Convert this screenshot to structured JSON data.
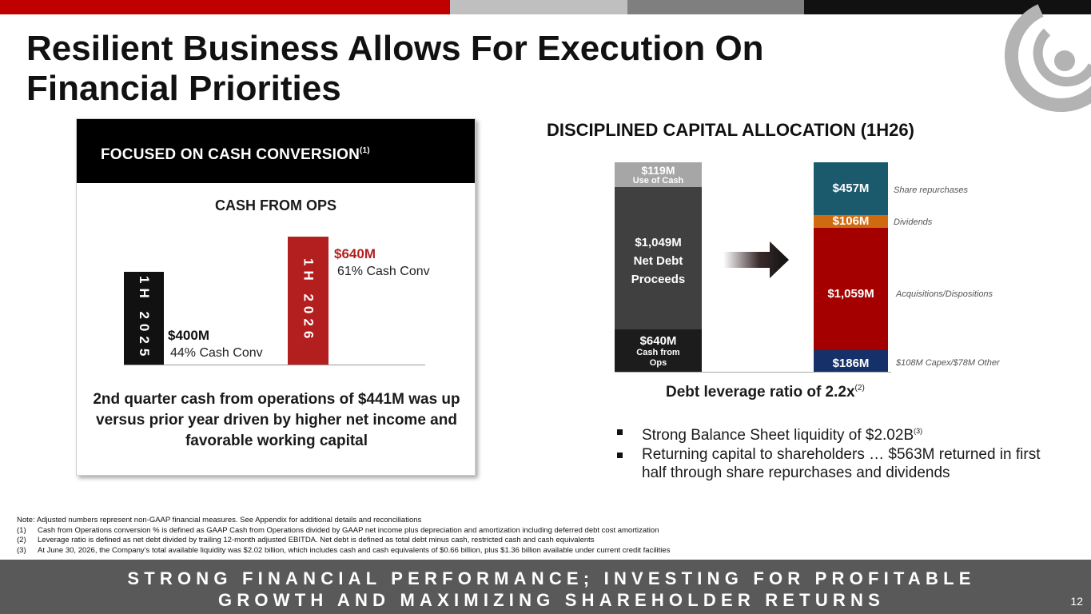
{
  "slide": {
    "title_line1": "Resilient Business Allows For Execution On",
    "title_line2": "Financial Priorities",
    "page_number": "12",
    "brand_colors": {
      "red": "#c00000",
      "light_gray": "#bfbfbf",
      "dark_gray": "#7f7f7f",
      "black": "#111111"
    }
  },
  "left_panel": {
    "header": "FOCUSED ON CASH CONVERSION",
    "header_ref": "(1)",
    "chart_title": "CASH FROM OPS",
    "bars": [
      {
        "label": "1H 2025",
        "value_label": "$400M",
        "value": 400,
        "sub": "44% Cash Conv",
        "color": "#111111",
        "value_color": "#111111"
      },
      {
        "label": "1H 2026",
        "value_label": "$640M",
        "value": 640,
        "sub": "61% Cash Conv",
        "color": "#b31f1f",
        "value_color": "#b31f1f"
      }
    ],
    "summary": "2nd quarter cash from operations of $441M was up versus prior year driven by higher net income and favorable working capital"
  },
  "right_panel": {
    "header": "DISCIPLINED CAPITAL ALLOCATION (1H26)",
    "sources": [
      {
        "value": "$640M",
        "label_lines": [
          "Cash from",
          "Ops"
        ],
        "amount": 640,
        "color": "#1c1c1c"
      },
      {
        "value": "$1,049M",
        "label_lines": [
          "Net Debt",
          "Proceeds"
        ],
        "amount": 1049,
        "color": "#404040"
      },
      {
        "value": "$119M",
        "label_lines": [
          "Use of Cash"
        ],
        "amount": 119,
        "color": "#a6a6a6"
      }
    ],
    "uses": [
      {
        "value": "$186M",
        "amount": 186,
        "color": "#16306a",
        "note": "$108M Capex/$78M Other"
      },
      {
        "value": "$1,059M",
        "amount": 1059,
        "color": "#a50000",
        "note": "Acquisitions/Dispositions"
      },
      {
        "value": "$106M",
        "amount": 106,
        "color": "#d06a10",
        "note": "Dividends"
      },
      {
        "value": "$457M",
        "amount": 457,
        "color": "#1a5a6c",
        "note": "Share repurchases"
      }
    ],
    "leverage_text": "Debt leverage ratio of 2.2x",
    "leverage_ref": "(2)",
    "bullet1": "Strong Balance Sheet liquidity of $2.02B",
    "bullet1_ref": "(3)",
    "bullet2": "Returning capital to shareholders … $563M returned in first half through share repurchases and dividends"
  },
  "notes": {
    "intro": "Note: Adjusted numbers represent non-GAAP financial measures.  See Appendix for additional details and reconciliations",
    "items": [
      {
        "num": "(1)",
        "text": "Cash from Operations conversion % is defined as GAAP Cash from Operations divided by GAAP net income plus depreciation and amortization including deferred debt cost amortization"
      },
      {
        "num": "(2)",
        "text": "Leverage ratio is defined as net debt divided by trailing 12-month adjusted EBITDA. Net debt is defined as total debt minus cash, restricted cash and cash equivalents"
      },
      {
        "num": "(3)",
        "text": "At June 30, 2026, the Company’s total available liquidity was $2.02 billion, which includes cash and cash equivalents of $0.66 billion, plus $1.36 billion available under current credit facilities"
      }
    ]
  },
  "footer": {
    "line1": "STRONG FINANCIAL PERFORMANCE; INVESTING FOR PROFITABLE",
    "line2": "GROWTH AND MAXIMIZING SHAREHOLDER RETURNS"
  }
}
